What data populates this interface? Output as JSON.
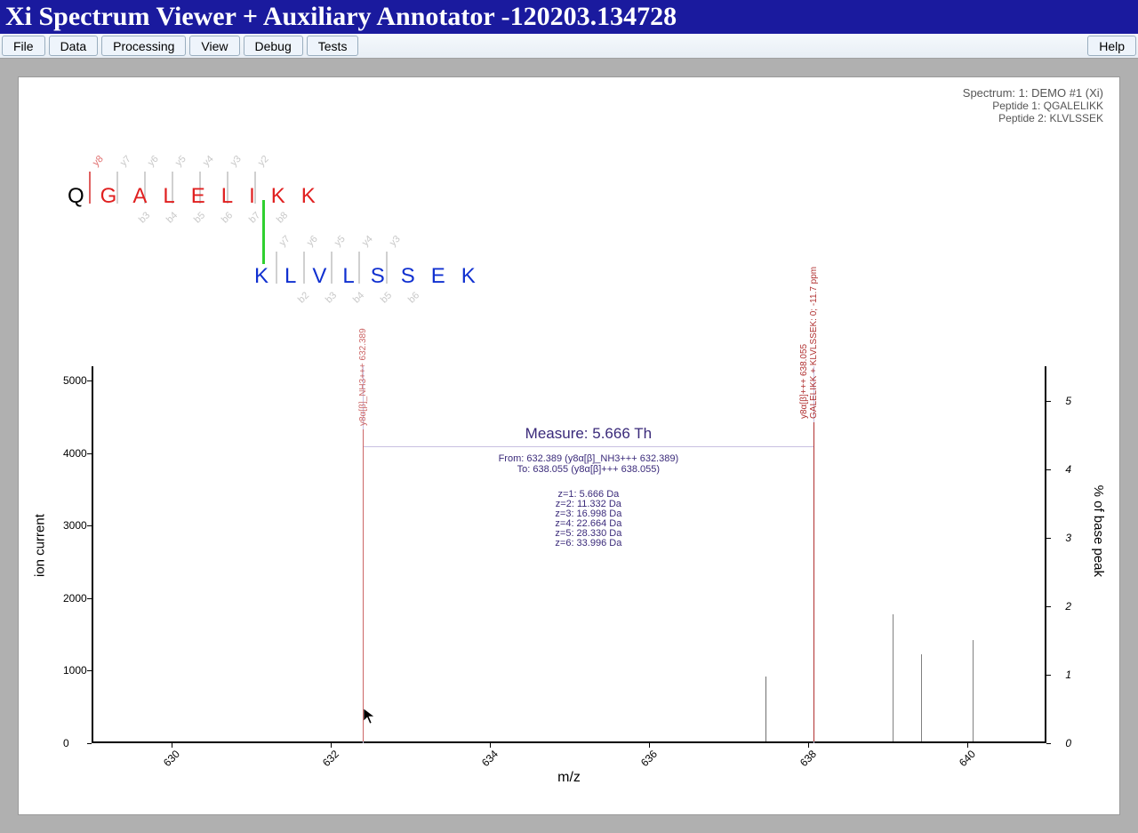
{
  "window": {
    "title": "Xi Spectrum Viewer + Auxiliary Annotator -120203.134728"
  },
  "menu": {
    "items": [
      "File",
      "Data",
      "Processing",
      "View",
      "Debug",
      "Tests"
    ],
    "help": "Help"
  },
  "info": {
    "spectrum": "Spectrum: 1: DEMO #1 (Xi)",
    "peptide1": "Peptide 1: QGALELIKK",
    "peptide2": "Peptide 2: KLVLSSEK"
  },
  "peptides": {
    "row1": {
      "black": [
        "Q"
      ],
      "red": [
        "G",
        "A",
        "L",
        "E",
        "L",
        "I",
        "K",
        "K"
      ]
    },
    "row2": [
      "K",
      "L",
      "V",
      "L",
      "S",
      "S",
      "E",
      "K"
    ],
    "frag_top_y": [
      "y8",
      "y7",
      "y6",
      "y5",
      "y4",
      "y3",
      "y2"
    ],
    "frag_bot_b": [
      "b3",
      "b4",
      "b5",
      "b6",
      "b7",
      "b8"
    ],
    "frag2_top_y": [
      "y7",
      "y6",
      "y5",
      "y4",
      "y3"
    ],
    "frag2_bot_b": [
      "b2",
      "b3",
      "b4",
      "b5",
      "b6"
    ],
    "xlink_color": "#30d030"
  },
  "chart": {
    "type": "mass-spectrum",
    "x_label": "m/z",
    "y_left_label": "ion current",
    "y_right_label": "% of base peak",
    "xlim": [
      629,
      641
    ],
    "ylim_left": [
      0,
      5200
    ],
    "ylim_right": [
      0,
      5.5
    ],
    "xticks": [
      630,
      632,
      634,
      636,
      638,
      640
    ],
    "yticks_left": [
      0,
      1000,
      2000,
      3000,
      4000,
      5000
    ],
    "yticks_right": [
      0,
      1,
      2,
      3,
      4,
      5
    ],
    "peaks": [
      {
        "mz": 632.389,
        "intensity": 4300,
        "color": "#cc6666",
        "label": "y8α[β]_NH3+++ 632.389"
      },
      {
        "mz": 637.45,
        "intensity": 900,
        "color": "#707070"
      },
      {
        "mz": 638.055,
        "intensity": 4400,
        "color": "#b03030",
        "label": "y8α[β]+++ 638.055\nGALELIKK + KLVLSSEK: 0; -11.7 ppm"
      },
      {
        "mz": 639.05,
        "intensity": 1750,
        "color": "#808080"
      },
      {
        "mz": 639.4,
        "intensity": 1200,
        "color": "#808080"
      },
      {
        "mz": 640.05,
        "intensity": 1400,
        "color": "#808080"
      }
    ],
    "measure": {
      "title": "Measure: 5.666 Th",
      "from": "From: 632.389 (y8α[β]_NH3+++ 632.389)",
      "to": "To: 638.055 (y8α[β]+++ 638.055)",
      "z_lines": [
        "z=1: 5.666 Da",
        "z=2: 11.332 Da",
        "z=3: 16.998 Da",
        "z=4: 22.664 Da",
        "z=5: 28.330 Da",
        "z=6: 33.996 Da"
      ],
      "from_mz": 632.389,
      "to_mz": 638.055,
      "line_y_intensity": 4100
    },
    "colors": {
      "axis": "#000000",
      "measure": "#3a2a7a",
      "measure_line": "#c8c0e0"
    },
    "cursor": {
      "mz": 632.42,
      "intensity": 450
    }
  }
}
